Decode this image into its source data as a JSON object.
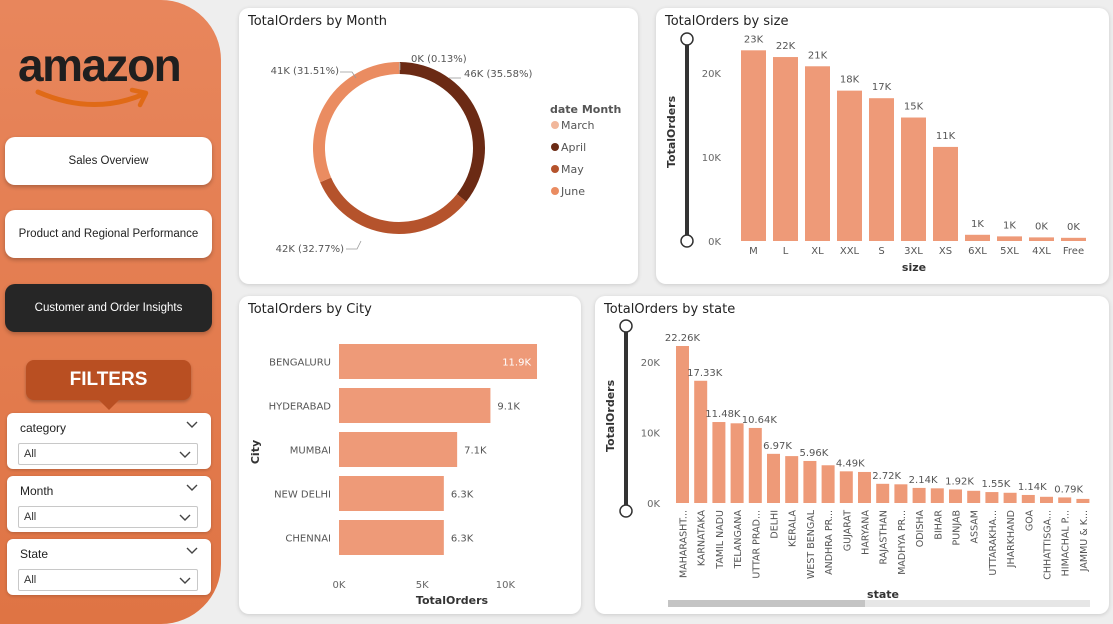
{
  "sidebar": {
    "logo_text": "amazon",
    "nav": [
      {
        "label": "Sales Overview"
      },
      {
        "label": "Product and Regional Performance"
      },
      {
        "label": "Customer and Order Insights"
      }
    ],
    "filters_title": "FILTERS",
    "filters": [
      {
        "label": "category",
        "value": "All"
      },
      {
        "label": "Month",
        "value": "All"
      },
      {
        "label": "State",
        "value": "All"
      }
    ]
  },
  "colors": {
    "accent": "#ee9a78",
    "march": "#f1b79b",
    "april": "#6b2a14",
    "may": "#b5532c",
    "june": "#ea8c61"
  },
  "charts": {
    "month": {
      "title": "TotalOrders by Month"
    },
    "size": {
      "title": "TotalOrders by size"
    },
    "city": {
      "title": "TotalOrders by City"
    },
    "state": {
      "title": "TotalOrders by state"
    }
  },
  "chart_data": [
    {
      "type": "pie",
      "title": "TotalOrders by Month",
      "legend_title": "date Month",
      "categories": [
        "March",
        "April",
        "May",
        "June"
      ],
      "values": [
        0.13,
        35.58,
        32.77,
        31.51
      ],
      "labels": [
        "0K (0.13%)",
        "46K (35.58%)",
        "42K (32.77%)",
        "41K (31.51%)"
      ]
    },
    {
      "type": "bar",
      "title": "TotalOrders by size",
      "xlabel": "size",
      "ylabel": "TotalOrders",
      "categories": [
        "M",
        "L",
        "XL",
        "XXL",
        "S",
        "3XL",
        "XS",
        "6XL",
        "5XL",
        "4XL",
        "Free"
      ],
      "values": [
        22700,
        21900,
        20800,
        17900,
        17000,
        14700,
        11200,
        740,
        550,
        430,
        380
      ],
      "labels": [
        "23K",
        "22K",
        "21K",
        "18K",
        "17K",
        "15K",
        "11K",
        "1K",
        "1K",
        "0K",
        "0K"
      ],
      "yticks": [
        "0K",
        "10K",
        "20K"
      ],
      "ylim": [
        0,
        25000
      ]
    },
    {
      "type": "bar",
      "title": "TotalOrders by City",
      "orientation": "horizontal",
      "xlabel": "TotalOrders",
      "ylabel": "City",
      "categories": [
        "BENGALURU",
        "HYDERABAD",
        "MUMBAI",
        "NEW DELHI",
        "CHENNAI"
      ],
      "values": [
        11900,
        9100,
        7100,
        6300,
        6300
      ],
      "labels": [
        "11.9K",
        "9.1K",
        "7.1K",
        "6.3K",
        "6.3K"
      ],
      "xticks": [
        "0K",
        "5K",
        "10K"
      ],
      "xlim": [
        0,
        12500
      ]
    },
    {
      "type": "bar",
      "title": "TotalOrders by state",
      "xlabel": "state",
      "ylabel": "TotalOrders",
      "categories": [
        "MAHARASHT...",
        "KARNATAKA",
        "TAMIL NADU",
        "TELANGANA",
        "UTTAR PRAD...",
        "DELHI",
        "KERALA",
        "WEST BENGAL",
        "ANDHRA PR...",
        "GUJARAT",
        "HARYANA",
        "RAJASTHAN",
        "MADHYA PR...",
        "ODISHA",
        "BIHAR",
        "PUNJAB",
        "ASSAM",
        "UTTARAKHA...",
        "JHARKHAND",
        "GOA",
        "CHHATTISGA...",
        "HIMACHAL P...",
        "JAMMU & K..."
      ],
      "values": [
        22260,
        17330,
        11480,
        11300,
        10640,
        6970,
        6650,
        5960,
        5350,
        4490,
        4400,
        2720,
        2650,
        2140,
        2080,
        1920,
        1730,
        1550,
        1450,
        1140,
        880,
        790,
        580
      ],
      "labels": [
        "22.26K",
        "17.33K",
        "11.48K",
        "",
        "10.64K",
        "6.97K",
        "",
        "5.96K",
        "",
        "4.49K",
        "",
        "2.72K",
        "",
        "2.14K",
        "",
        "1.92K",
        "",
        "1.55K",
        "",
        "1.14K",
        "",
        "0.79K",
        ""
      ],
      "yticks": [
        "0K",
        "10K",
        "20K"
      ],
      "ylim": [
        0,
        24000
      ]
    }
  ]
}
